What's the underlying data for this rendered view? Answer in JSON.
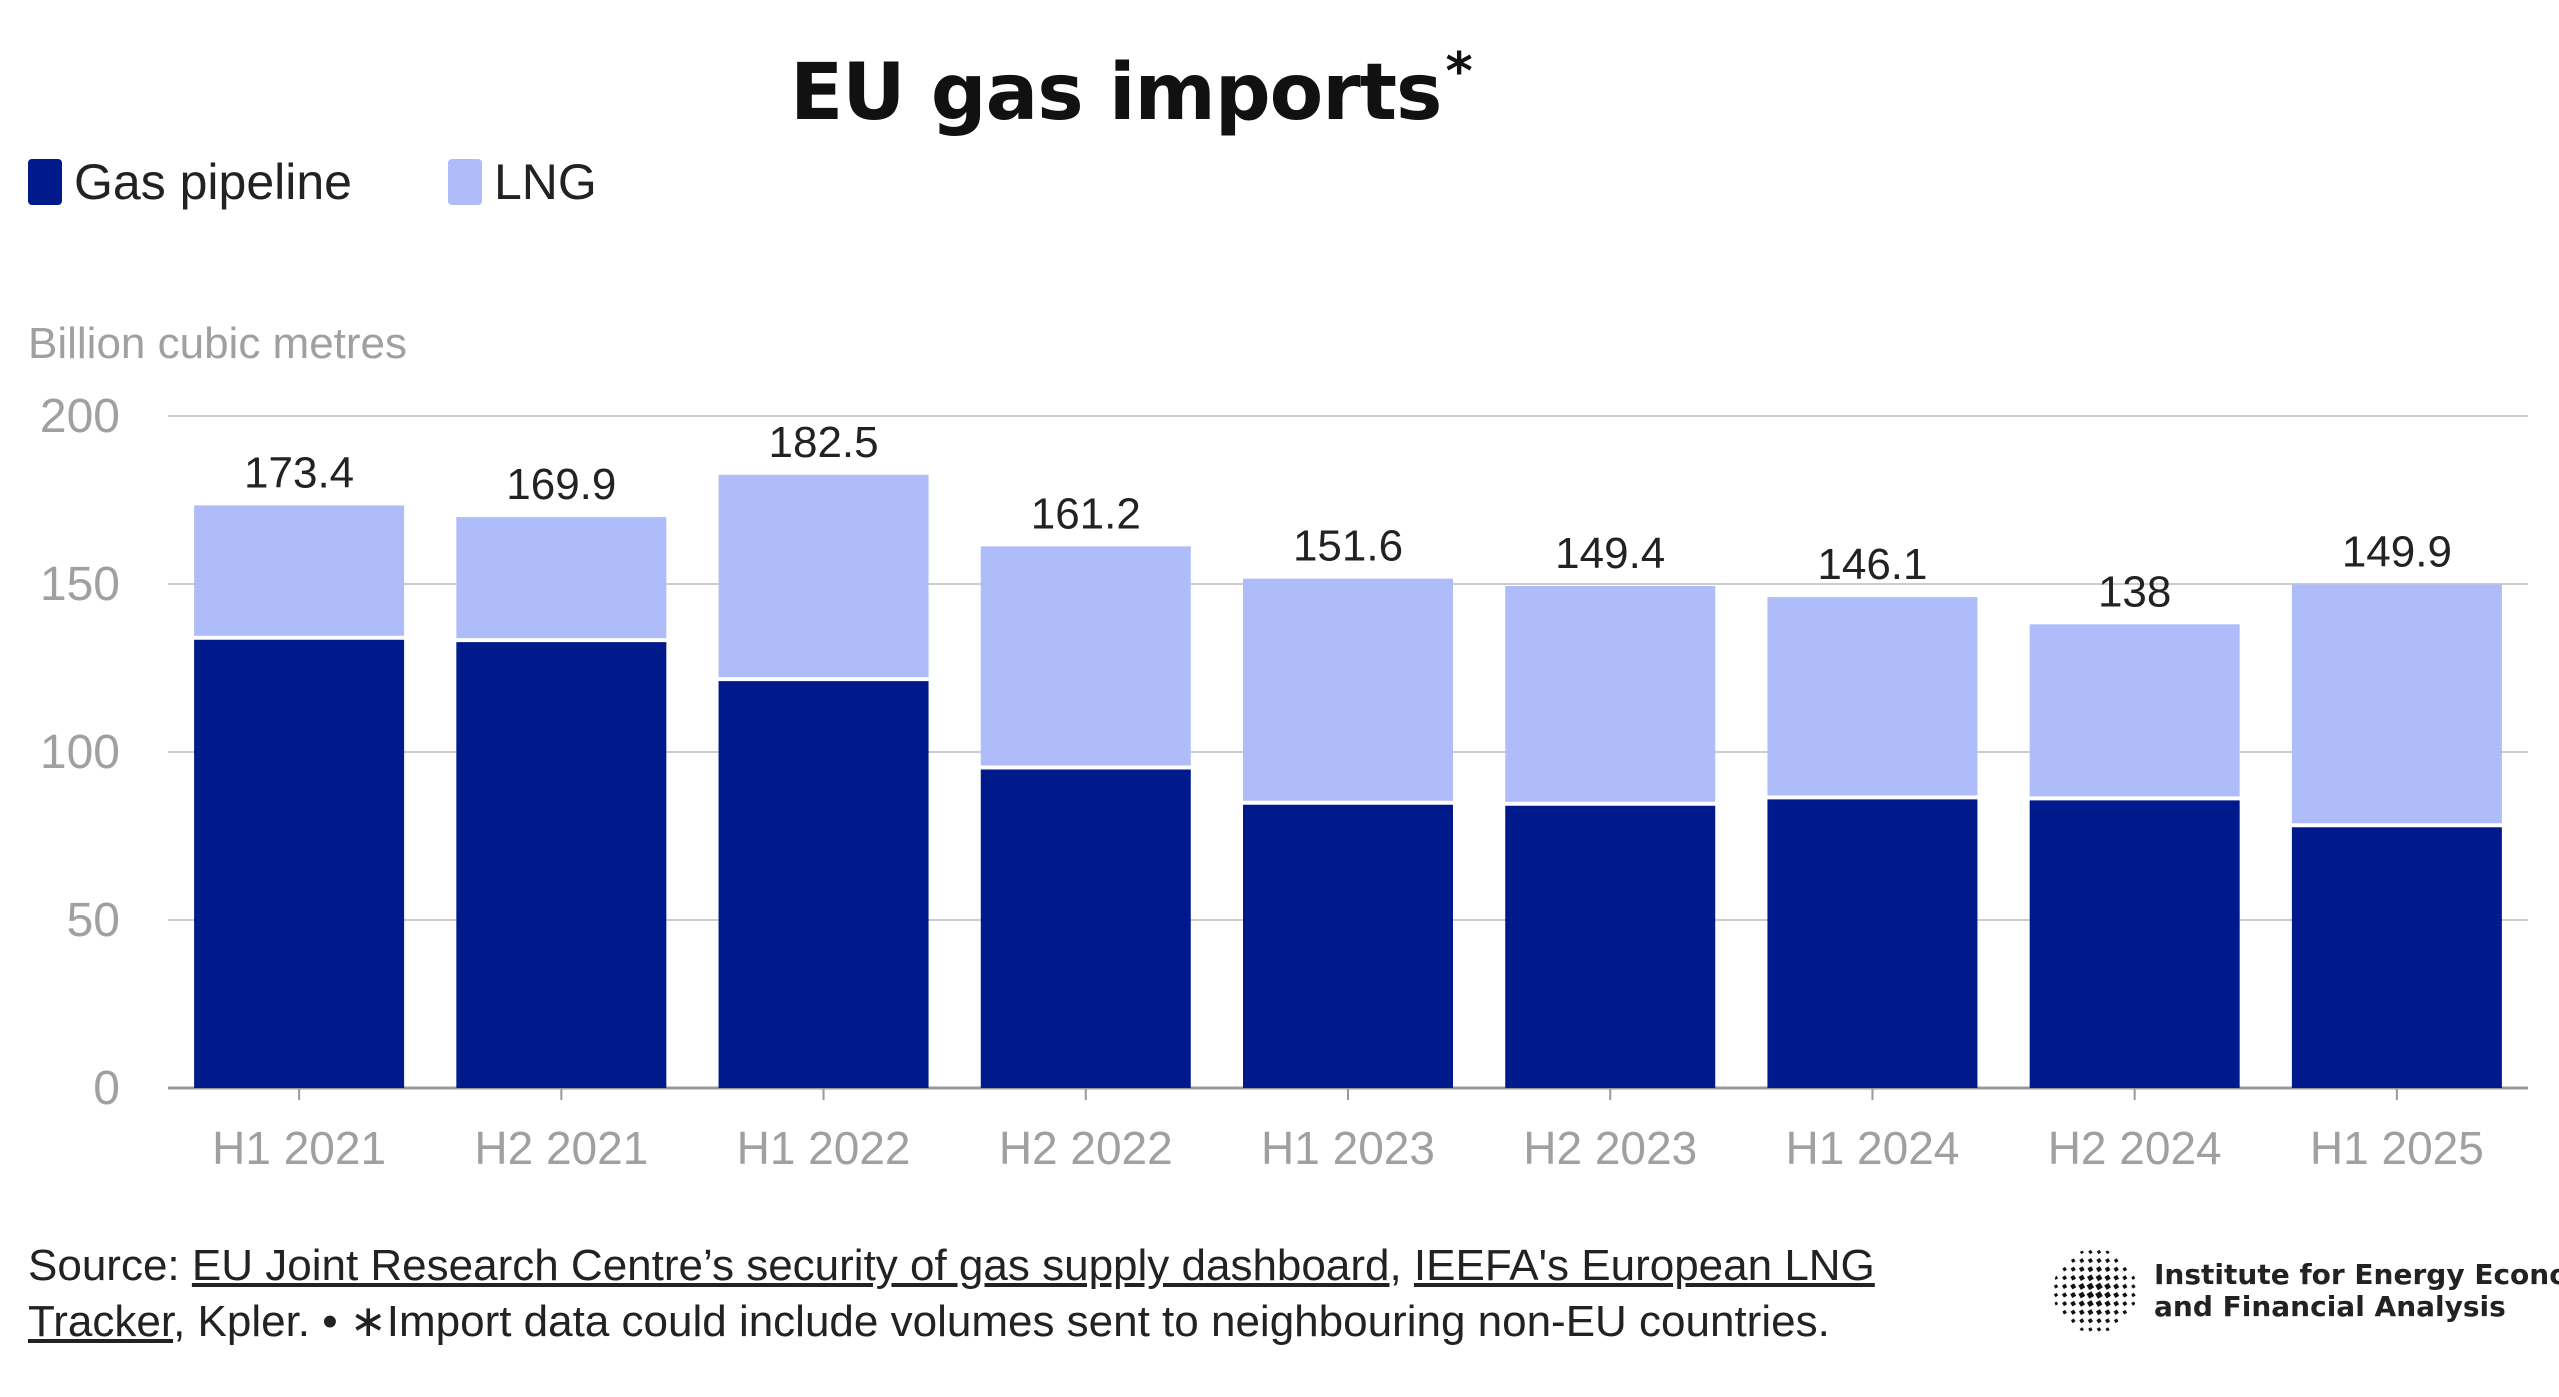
{
  "chart_data": {
    "type": "bar",
    "stacked": true,
    "title": "EU gas imports",
    "title_mark": "*",
    "ylabel": "Billion cubic metres",
    "ylim": [
      0,
      200
    ],
    "yticks": [
      0,
      50,
      100,
      150,
      200
    ],
    "grid": true,
    "legend_position": "top-left",
    "categories": [
      "H1 2021",
      "H2 2021",
      "H1 2022",
      "H2 2022",
      "H1 2023",
      "H2 2023",
      "H1 2024",
      "H2 2024",
      "H1 2025"
    ],
    "series": [
      {
        "name": "Gas pipeline",
        "color": "#001a8c",
        "values": [
          133.4,
          132.7,
          121.1,
          94.8,
          84.3,
          84.0,
          85.9,
          85.6,
          77.6
        ]
      },
      {
        "name": "LNG",
        "color": "#aebdfa",
        "values": [
          40.0,
          37.2,
          61.4,
          66.4,
          67.3,
          65.4,
          60.2,
          52.4,
          72.3
        ]
      }
    ],
    "totals": [
      "173.4",
      "169.9",
      "182.5",
      "161.2",
      "151.6",
      "149.4",
      "146.1",
      "138",
      "149.9"
    ]
  },
  "footer": {
    "prefix": "Source: ",
    "link1": "EU Joint Research Centre’s security of gas supply dashboard",
    "sep": ", ",
    "link2": "IEEFA's European LNG Tracker",
    "suffix": ", Kpler. • ∗Import data could include volumes sent to neighbouring non-EU countries."
  },
  "logo": {
    "line1": "Institute for Energy Economics",
    "line2": "and Financial Analysis",
    "icon": "globe-icon"
  }
}
